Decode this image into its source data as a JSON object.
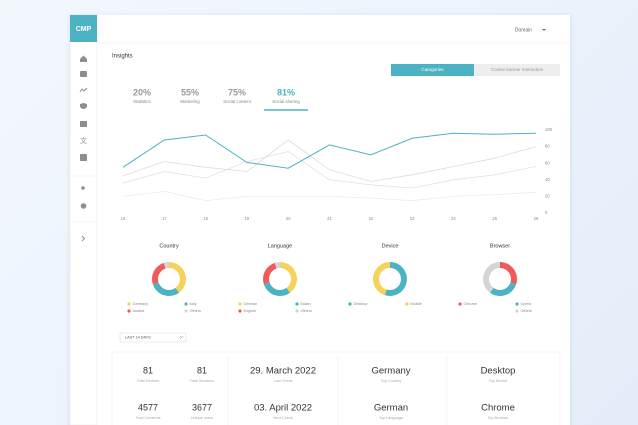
{
  "app": {
    "logo": "CMP",
    "domain": "Domain"
  },
  "page_title": "Insights",
  "tabs": [
    "Categories",
    "Cookie banner interaction"
  ],
  "stats": [
    {
      "value": "20%",
      "label": "Statistics"
    },
    {
      "value": "55%",
      "label": "Marketing"
    },
    {
      "value": "75%",
      "label": "Social content"
    },
    {
      "value": "81%",
      "label": "Social sharing"
    }
  ],
  "chart_data": [
    {
      "type": "line",
      "categories": [
        "16",
        "17",
        "18",
        "19",
        "20",
        "21",
        "22",
        "23",
        "24",
        "25",
        "26"
      ],
      "ylim": [
        0,
        100
      ],
      "yticks": [
        0,
        20,
        40,
        60,
        80,
        100
      ],
      "series": [
        {
          "color": "#4bb3c3",
          "values": [
            55,
            88,
            94,
            61,
            54,
            82,
            70,
            90,
            96,
            95,
            96
          ]
        },
        {
          "color": "#dcdcdc",
          "values": [
            45,
            62,
            55,
            50,
            88,
            52,
            38,
            46,
            56,
            66,
            80
          ]
        },
        {
          "color": "#e2e2e2",
          "values": [
            36,
            50,
            42,
            62,
            74,
            40,
            34,
            30,
            40,
            46,
            56
          ]
        },
        {
          "color": "#ebebeb",
          "values": [
            20,
            26,
            15,
            20,
            20,
            20,
            18,
            15,
            20,
            22,
            25
          ]
        }
      ]
    },
    {
      "type": "donut",
      "title": "Country",
      "categories": [
        "Germany",
        "Italy",
        "Austria",
        "Others"
      ],
      "values": [
        40,
        30,
        25,
        5
      ],
      "colors": [
        "#f5d35a",
        "#4bb3c3",
        "#ef5a5a",
        "#d5d5d5"
      ]
    },
    {
      "type": "donut",
      "title": "Language",
      "categories": [
        "German",
        "Italian",
        "English",
        "Others"
      ],
      "values": [
        40,
        30,
        25,
        5
      ],
      "colors": [
        "#f5d35a",
        "#4bb3c3",
        "#ef5a5a",
        "#d5d5d5"
      ]
    },
    {
      "type": "donut",
      "title": "Device",
      "categories": [
        "Desktop",
        "Mobile"
      ],
      "values": [
        55,
        45
      ],
      "colors": [
        "#4bb3c3",
        "#f5d35a"
      ]
    },
    {
      "type": "donut",
      "title": "Browser",
      "categories": [
        "Chrome",
        "Opera",
        "Others"
      ],
      "values": [
        30,
        30,
        40
      ],
      "colors": [
        "#ef5a5a",
        "#4bb3c3",
        "#d5d5d5"
      ]
    }
  ],
  "filter": "LAST 14 DAYS",
  "summary": [
    [
      {
        "value": "81",
        "label": "Total Devices"
      },
      {
        "value": "81",
        "label": "Total Sessions"
      },
      {
        "value": "4577",
        "label": "Total Consents"
      },
      {
        "value": "3677",
        "label": "Unique users"
      }
    ],
    [
      {
        "value": "29. March 2022",
        "label": "Last Check"
      },
      {
        "value": "03. April 2022",
        "label": "Next Check"
      }
    ],
    [
      {
        "value": "Germany",
        "label": "Top Country"
      },
      {
        "value": "German",
        "label": "Top Language"
      }
    ],
    [
      {
        "value": "Desktop",
        "label": "Top Device"
      },
      {
        "value": "Chrome",
        "label": "Top Browser"
      }
    ]
  ]
}
